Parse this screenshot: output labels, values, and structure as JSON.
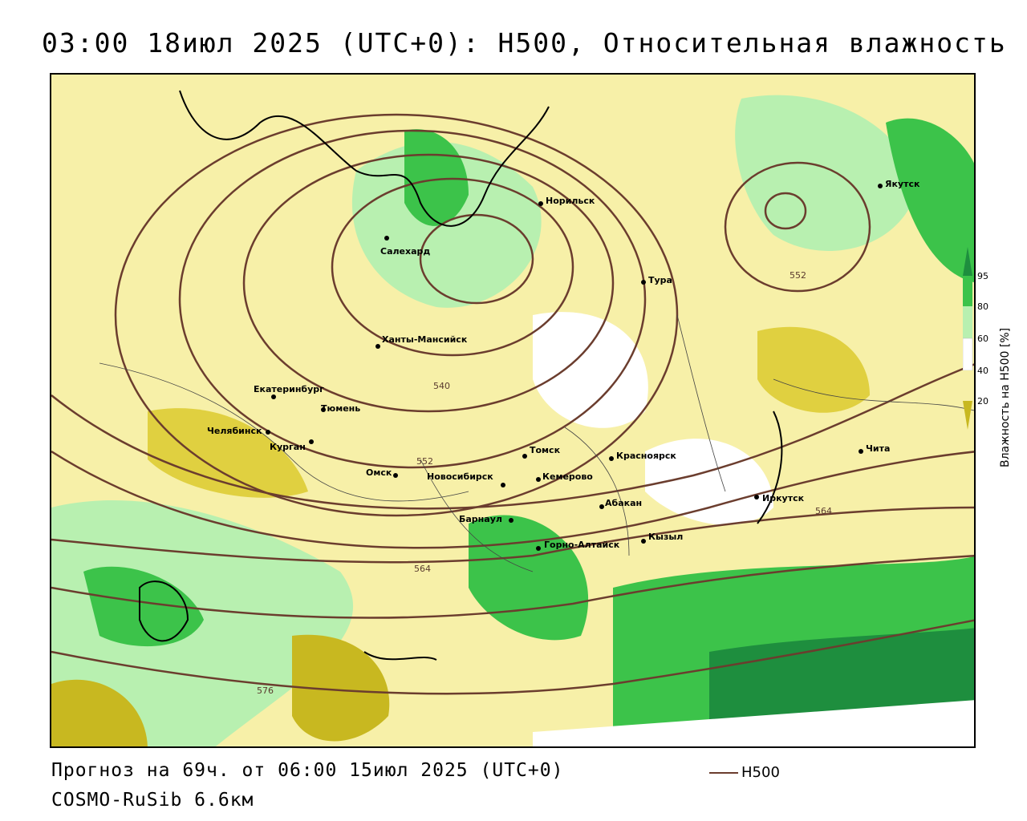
{
  "title": "03:00 18июл 2025 (UTC+0): H500, Относительная влажность",
  "footer": {
    "forecast": "Прогноз на 69ч. от 06:00 15июл 2025 (UTC+0)",
    "model": "COSMO-RuSib 6.6км"
  },
  "legend": {
    "h500_label": "H500",
    "h500_color": "#6b3d2e"
  },
  "colorbar": {
    "title": "Влажность на H500 [%]",
    "ticks": [
      "95",
      "80",
      "60",
      "40",
      "20"
    ],
    "colors": {
      "dark_green": "#1e8e3e",
      "green": "#3cc34a",
      "light_green": "#b8f0b0",
      "white": "#ffffff",
      "light_yellow": "#f7f0a8",
      "yellow": "#e0d040",
      "olive": "#c8b820"
    }
  },
  "contour_labels": [
    "552",
    "540",
    "552",
    "564",
    "564",
    "576"
  ],
  "cities": [
    {
      "name": "Норильск"
    },
    {
      "name": "Салехард"
    },
    {
      "name": "Тура"
    },
    {
      "name": "Якутск"
    },
    {
      "name": "Ханты-Мансийск"
    },
    {
      "name": "Екатеринбург"
    },
    {
      "name": "Тюмень"
    },
    {
      "name": "Челябинск"
    },
    {
      "name": "Курган"
    },
    {
      "name": "Омск"
    },
    {
      "name": "Новосибирск"
    },
    {
      "name": "Томск"
    },
    {
      "name": "Кемерово"
    },
    {
      "name": "Красноярск"
    },
    {
      "name": "Абакан"
    },
    {
      "name": "Барнаул"
    },
    {
      "name": "Горно-Алтайск"
    },
    {
      "name": "Кызыл"
    },
    {
      "name": "Иркутск"
    },
    {
      "name": "Чита"
    }
  ]
}
